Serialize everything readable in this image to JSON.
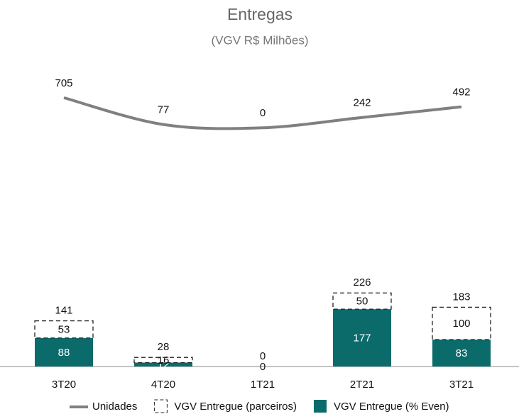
{
  "chart_data": {
    "type": "bar_line",
    "title": "Entregas",
    "subtitle": "(VGV R$ Milhões)",
    "categories": [
      "3T20",
      "4T20",
      "1T21",
      "2T21",
      "3T21"
    ],
    "series": [
      {
        "name": "VGV Entregue (% Even)",
        "type": "bar",
        "color": "#0b6b6b",
        "values": [
          88,
          12,
          0,
          177,
          83
        ]
      },
      {
        "name": "VGV Entregue (parceiros)",
        "type": "bar",
        "color": "#ffffff",
        "dashed": true,
        "values": [
          53,
          16,
          0,
          50,
          100
        ]
      },
      {
        "name": "Unidades",
        "type": "line",
        "axis": "y2",
        "color": "#808080",
        "values": [
          705,
          77,
          0,
          242,
          492
        ]
      }
    ],
    "totals": [
      141,
      28,
      0,
      226,
      183
    ],
    "stacked": true,
    "ylim": [
      0,
      1000
    ],
    "y2lim": [
      -5600,
      2000
    ],
    "grid": false,
    "legend": "bottom"
  }
}
